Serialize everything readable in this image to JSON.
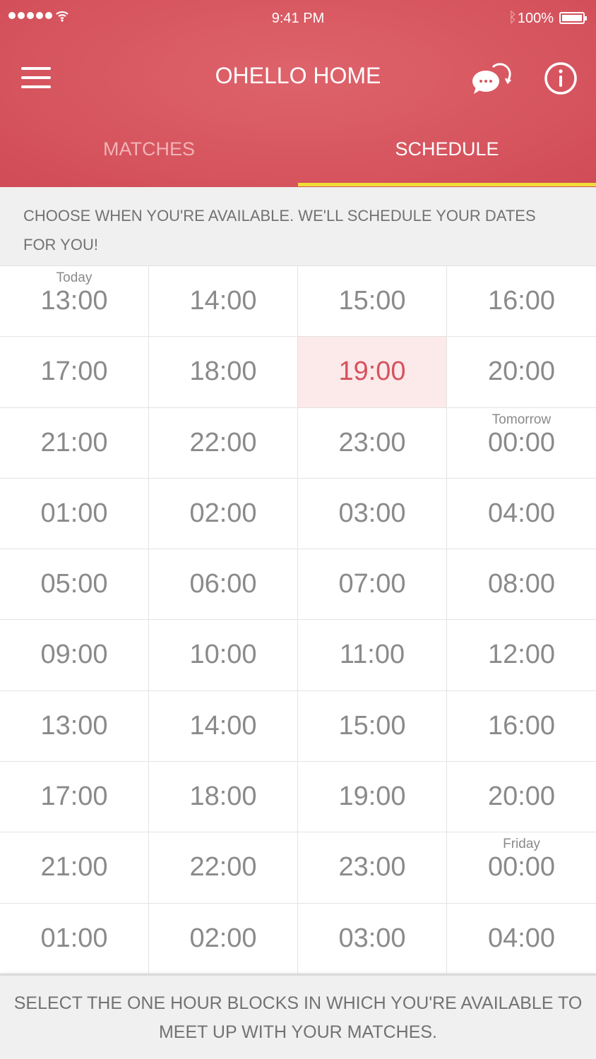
{
  "status": {
    "time": "9:41 PM",
    "battery": "100%"
  },
  "header": {
    "title": "OHELLO HOME"
  },
  "tabs": [
    {
      "label": "MATCHES",
      "active": false
    },
    {
      "label": "SCHEDULE",
      "active": true
    }
  ],
  "colors": {
    "brand": "#d5535d",
    "tab_indicator": "#f1dd37",
    "selected_bg": "#fce9ea"
  },
  "intro": "CHOOSE WHEN YOU'RE AVAILABLE. WE'LL SCHEDULE YOUR DATES FOR YOU!",
  "slots": [
    {
      "time": "13:00",
      "label": "Today"
    },
    {
      "time": "14:00"
    },
    {
      "time": "15:00"
    },
    {
      "time": "16:00"
    },
    {
      "time": "17:00"
    },
    {
      "time": "18:00"
    },
    {
      "time": "19:00",
      "selected": true
    },
    {
      "time": "20:00"
    },
    {
      "time": "21:00"
    },
    {
      "time": "22:00"
    },
    {
      "time": "23:00"
    },
    {
      "time": "00:00",
      "label": "Tomorrow"
    },
    {
      "time": "01:00"
    },
    {
      "time": "02:00"
    },
    {
      "time": "03:00"
    },
    {
      "time": "04:00"
    },
    {
      "time": "05:00"
    },
    {
      "time": "06:00"
    },
    {
      "time": "07:00"
    },
    {
      "time": "08:00"
    },
    {
      "time": "09:00"
    },
    {
      "time": "10:00"
    },
    {
      "time": "11:00"
    },
    {
      "time": "12:00"
    },
    {
      "time": "13:00"
    },
    {
      "time": "14:00"
    },
    {
      "time": "15:00"
    },
    {
      "time": "16:00"
    },
    {
      "time": "17:00"
    },
    {
      "time": "18:00"
    },
    {
      "time": "19:00"
    },
    {
      "time": "20:00"
    },
    {
      "time": "21:00"
    },
    {
      "time": "22:00"
    },
    {
      "time": "23:00"
    },
    {
      "time": "00:00",
      "label": "Friday"
    },
    {
      "time": "01:00"
    },
    {
      "time": "02:00"
    },
    {
      "time": "03:00"
    },
    {
      "time": "04:00"
    }
  ],
  "footer": "SELECT THE ONE HOUR BLOCKS IN WHICH YOU'RE AVAILABLE TO MEET UP WITH YOUR MATCHES."
}
